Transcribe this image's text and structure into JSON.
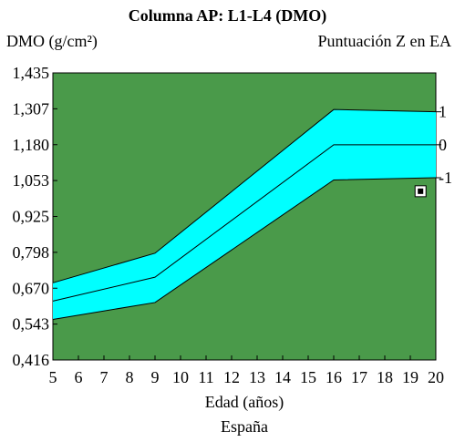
{
  "chart_data": {
    "type": "area",
    "title": "Columna AP: L1-L4 (DMO)",
    "ylabel": "DMO (g/cm²)",
    "y2label": "Puntuación Z en EA",
    "xlabel": "Edad (años)",
    "footer": "España",
    "x_ticks": [
      "5",
      "6",
      "7",
      "8",
      "9",
      "10",
      "11",
      "12",
      "13",
      "14",
      "15",
      "16",
      "17",
      "18",
      "19",
      "20"
    ],
    "y_ticks": [
      "0,416",
      "0,543",
      "0,670",
      "0,798",
      "0,925",
      "1,053",
      "1,180",
      "1,307",
      "1,435"
    ],
    "y2_ticks": [
      {
        "label": "1",
        "value": 1.297
      },
      {
        "label": "0",
        "value": 1.18
      },
      {
        "label": "-1",
        "value": 1.063
      }
    ],
    "xlim": [
      5,
      20
    ],
    "ylim": [
      0.416,
      1.435
    ],
    "grid": false,
    "colors": {
      "plot_background": "#4a9a4a",
      "band": "#00ffff",
      "line": "#000000",
      "marker": "#000000"
    },
    "series": [
      {
        "role": "upper (+1 SD)",
        "x": [
          5,
          9,
          16,
          20
        ],
        "y": [
          0.69,
          0.795,
          1.305,
          1.297
        ]
      },
      {
        "role": "mean (0)",
        "x": [
          5,
          9,
          16,
          20
        ],
        "y": [
          0.625,
          0.71,
          1.18,
          1.18
        ]
      },
      {
        "role": "lower (-1 SD)",
        "x": [
          5,
          9,
          16,
          20
        ],
        "y": [
          0.56,
          0.62,
          1.055,
          1.063
        ]
      }
    ],
    "points": [
      {
        "x": 19.4,
        "y": 1.015,
        "marker": "square"
      }
    ]
  }
}
